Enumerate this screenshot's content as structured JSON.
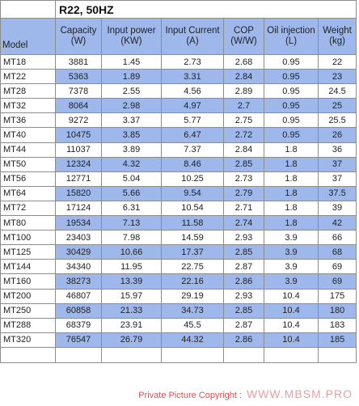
{
  "title": "R22, 50HZ",
  "headers": {
    "model": "Model",
    "capacity": [
      "Capacity",
      "(W)"
    ],
    "input_power": [
      "Input power",
      "(KW)"
    ],
    "input_current": [
      "Input Current",
      "(A)"
    ],
    "cop": [
      "COP",
      "(W/W)"
    ],
    "oil": [
      "Oil injection",
      "(L)"
    ],
    "weight": [
      "Weight",
      "(kg)"
    ]
  },
  "rows": [
    [
      "MT18",
      "3881",
      "1.45",
      "2.73",
      "2.68",
      "0.95",
      "22"
    ],
    [
      "MT22",
      "5363",
      "1.89",
      "3.31",
      "2.84",
      "0.95",
      "23"
    ],
    [
      "MT28",
      "7378",
      "2.55",
      "4.56",
      "2.89",
      "0.95",
      "24.5"
    ],
    [
      "MT32",
      "8064",
      "2.98",
      "4.97",
      "2.7",
      "0.95",
      "25"
    ],
    [
      "MT36",
      "9272",
      "3.37",
      "5.77",
      "2.75",
      "0.95",
      "25.5"
    ],
    [
      "MT40",
      "10475",
      "3.85",
      "6.47",
      "2.72",
      "0.95",
      "26"
    ],
    [
      "MT44",
      "11037",
      "3.89",
      "7.37",
      "2.84",
      "1.8",
      "36"
    ],
    [
      "MT50",
      "12324",
      "4.32",
      "8.46",
      "2.85",
      "1.8",
      "37"
    ],
    [
      "MT56",
      "12771",
      "5.04",
      "10.25",
      "2.73",
      "1.8",
      "37"
    ],
    [
      "MT64",
      "15820",
      "5.66",
      "9.54",
      "2.79",
      "1.8",
      "37.5"
    ],
    [
      "MT72",
      "17124",
      "6.31",
      "10.54",
      "2.71",
      "1.8",
      "39"
    ],
    [
      "MT80",
      "19534",
      "7.13",
      "11.58",
      "2.74",
      "1.8",
      "42"
    ],
    [
      "MT100",
      "23403",
      "7.98",
      "14.59",
      "2.93",
      "3.9",
      "66"
    ],
    [
      "MT125",
      "30429",
      "10.66",
      "17.37",
      "2.85",
      "3.9",
      "68"
    ],
    [
      "MT144",
      "34340",
      "11.95",
      "22.75",
      "2.87",
      "3.9",
      "69"
    ],
    [
      "MT160",
      "38273",
      "13.39",
      "22.16",
      "2.86",
      "3.9",
      "69"
    ],
    [
      "MT200",
      "46807",
      "15.97",
      "29.19",
      "2.93",
      "10.4",
      "175"
    ],
    [
      "MT250",
      "60858",
      "21.33",
      "34.73",
      "2.85",
      "10.4",
      "180"
    ],
    [
      "MT288",
      "68379",
      "23.91",
      "45.5",
      "2.87",
      "10.4",
      "183"
    ],
    [
      "MT320",
      "76547",
      "26.79",
      "44.32",
      "2.86",
      "10.4",
      "185"
    ]
  ],
  "watermark": {
    "label": "Private Picture Copyright :",
    "site": "WWW.MBSM.PRO"
  },
  "colors": {
    "band": "#9eb8ec",
    "grid": "#8c8c8c",
    "watermark_text": "#e05050"
  }
}
